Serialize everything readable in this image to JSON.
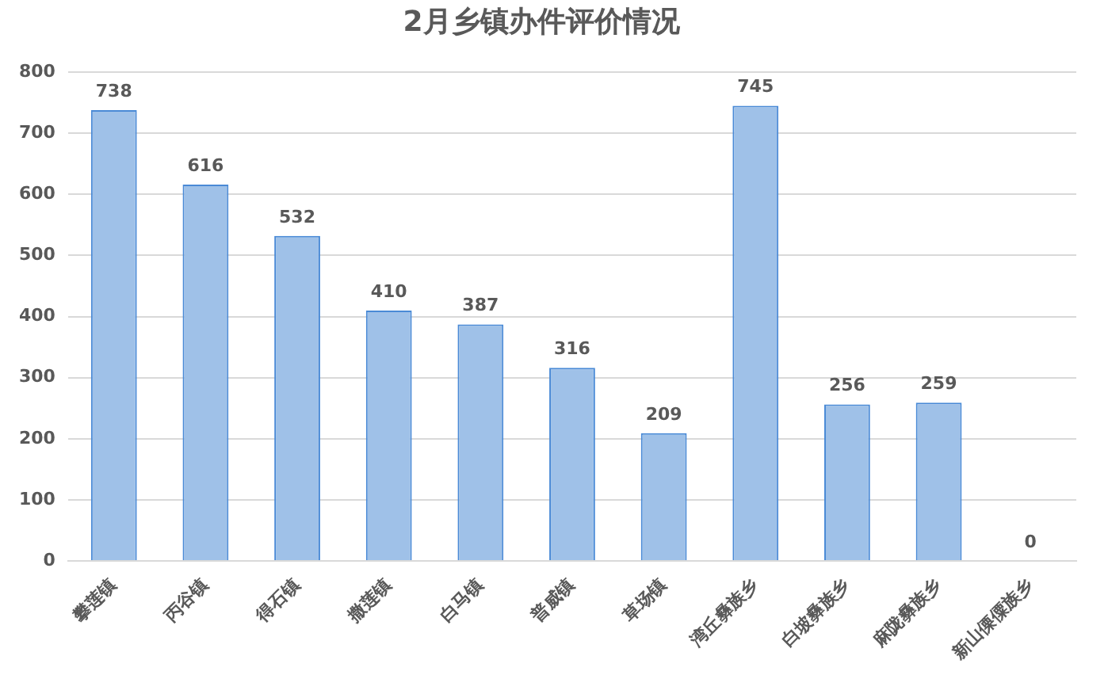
{
  "chart_data": {
    "type": "bar",
    "title": "2月乡镇办件评价情况",
    "categories": [
      "攀莲镇",
      "丙谷镇",
      "得石镇",
      "撒莲镇",
      "白马镇",
      "普威镇",
      "草场镇",
      "湾丘彝族乡",
      "白坡彝族乡",
      "麻陇彝族乡",
      "新山傈僳族乡"
    ],
    "values": [
      738,
      616,
      532,
      410,
      387,
      316,
      209,
      745,
      256,
      259,
      0
    ],
    "color": "#9fc1e8",
    "ylim": [
      0,
      800
    ],
    "yticks": [
      0,
      100,
      200,
      300,
      400,
      500,
      600,
      700,
      800
    ],
    "grid": "y",
    "data_labels": true
  }
}
